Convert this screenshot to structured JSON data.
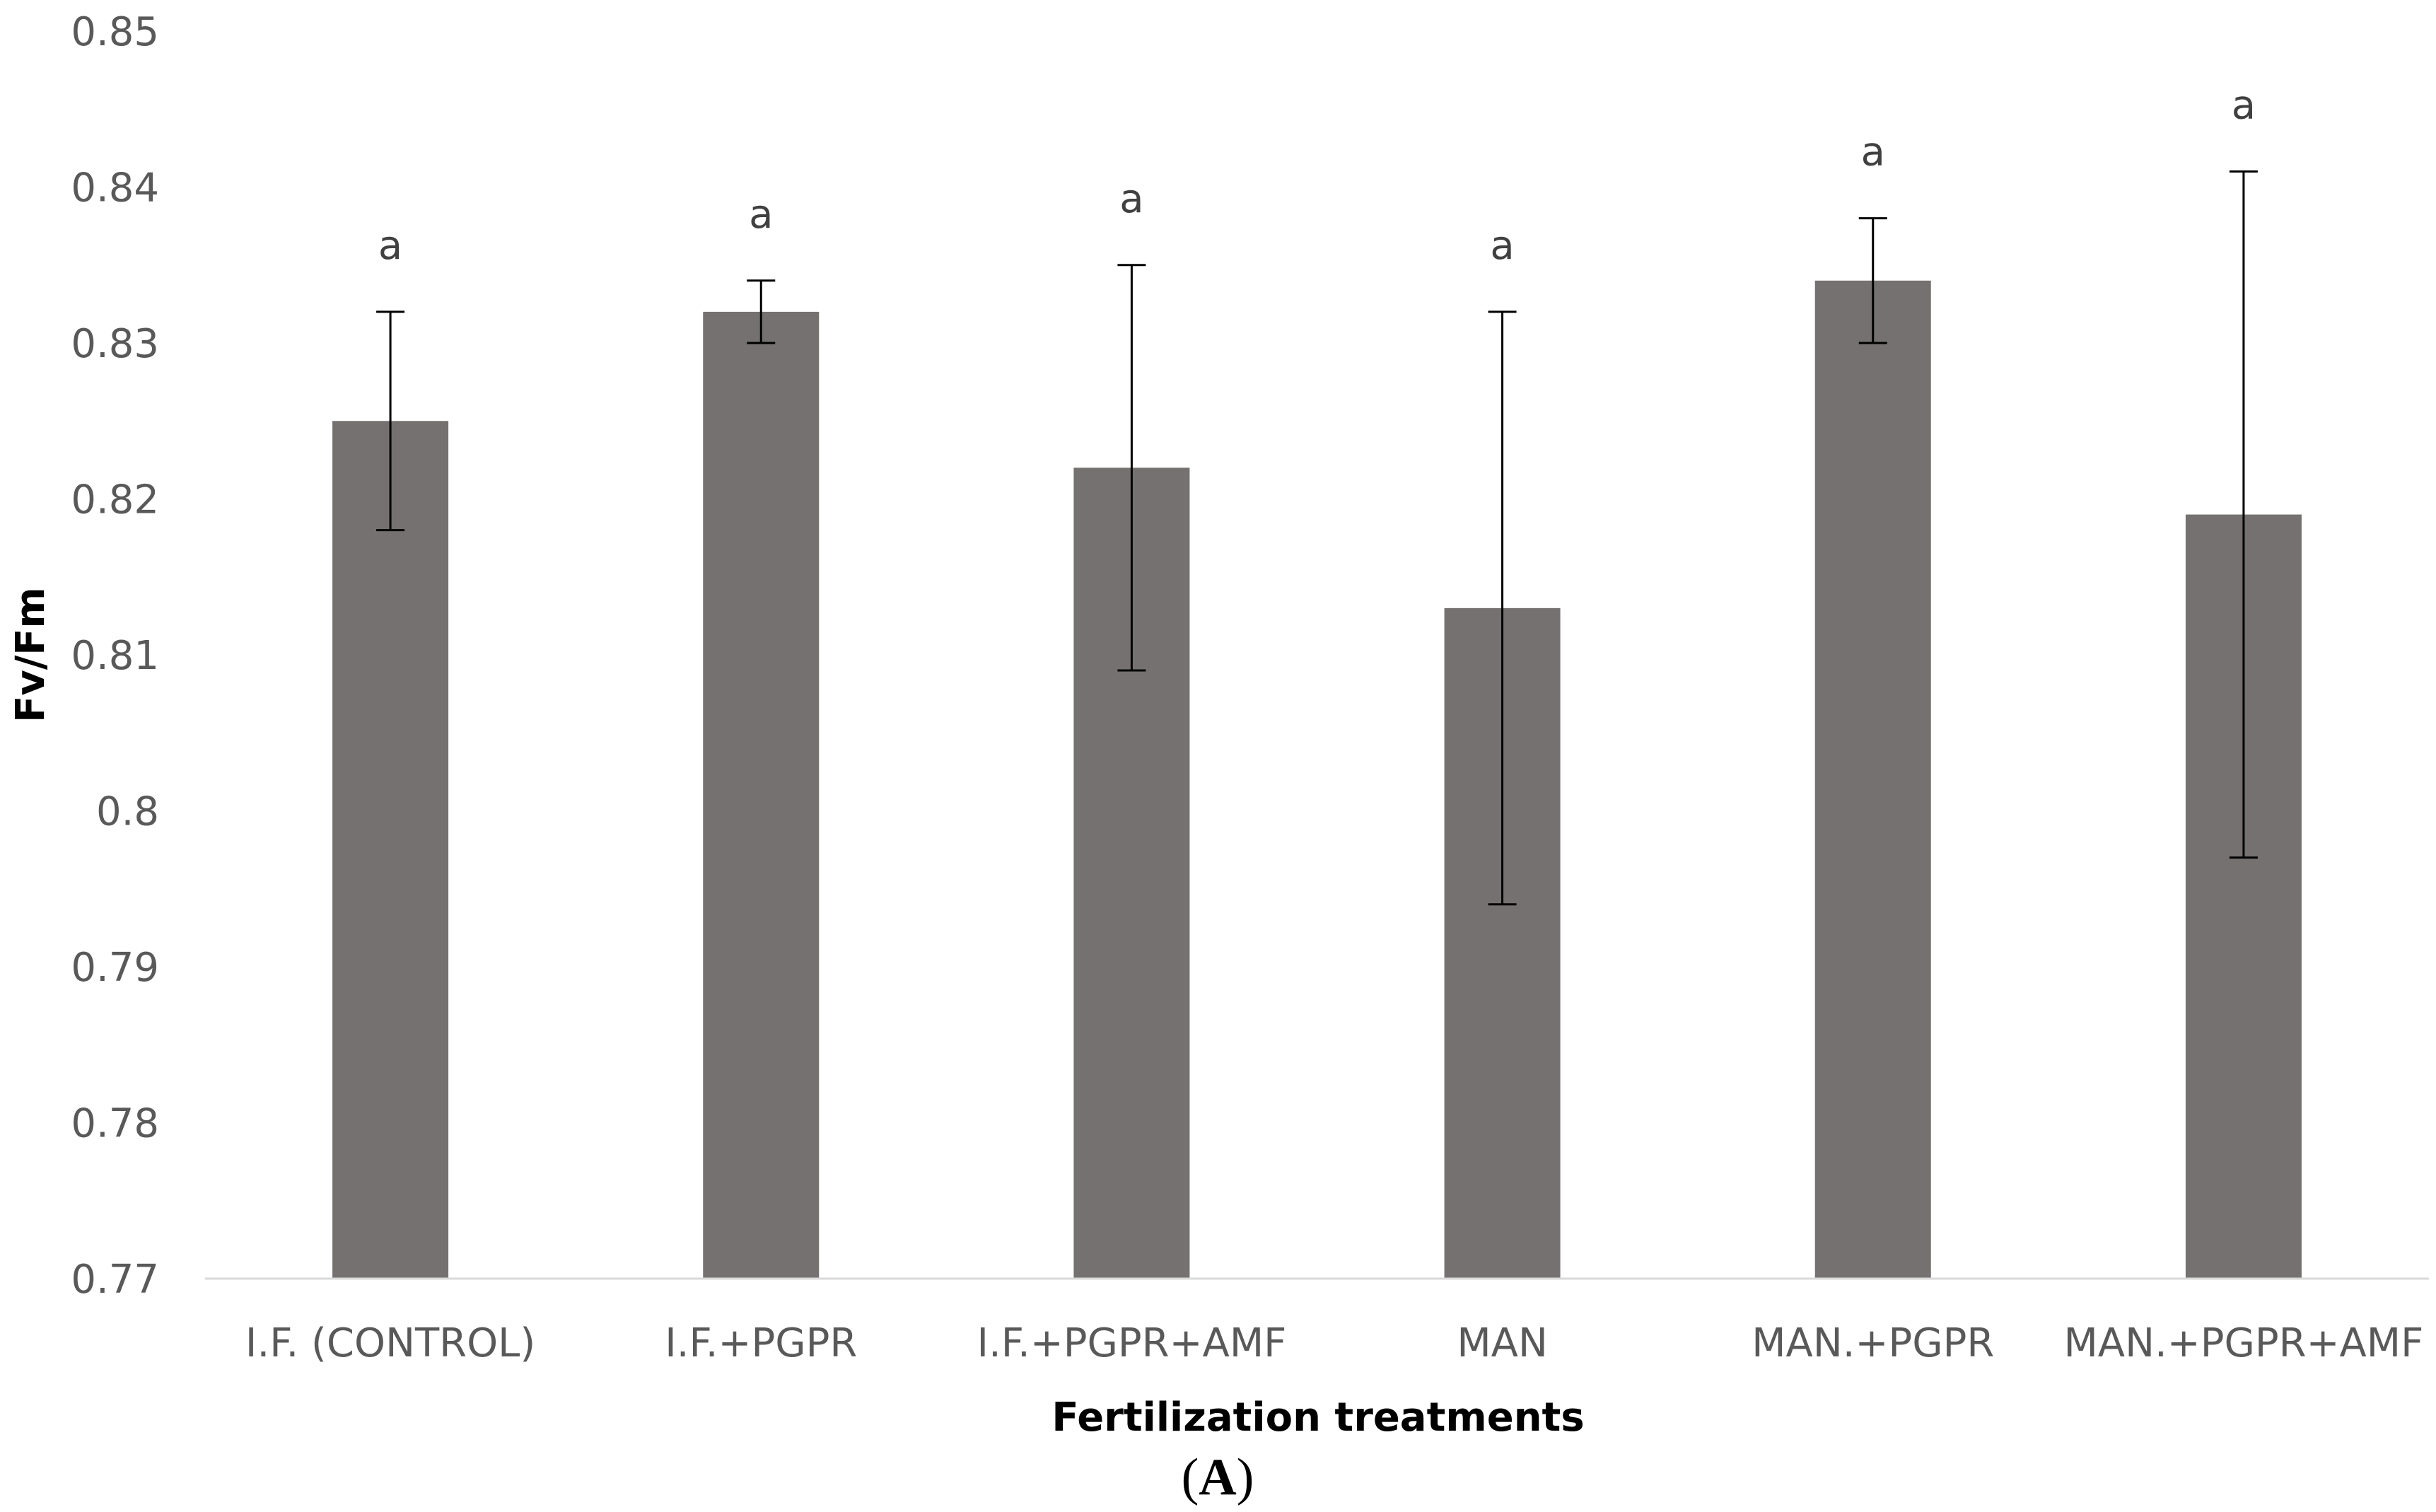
{
  "chart_data": {
    "type": "bar",
    "title": "",
    "xlabel": "Fertilization treatments",
    "ylabel": "Fv/Fm",
    "ylim": [
      0.77,
      0.85
    ],
    "yticks": [
      "0.77",
      "0.78",
      "0.79",
      "0.8",
      "0.81",
      "0.82",
      "0.83",
      "0.84",
      "0.85"
    ],
    "categories": [
      "I.F. (CONTROL)",
      "I.F.+PGPR",
      "I.F.+PGPR+AMF",
      "MAN",
      "MAN.+PGPR",
      "MAN.+PGPR+AMF"
    ],
    "values": [
      0.825,
      0.832,
      0.822,
      0.813,
      0.834,
      0.819
    ],
    "error_low": [
      0.818,
      0.83,
      0.809,
      0.794,
      0.83,
      0.797
    ],
    "error_high": [
      0.832,
      0.834,
      0.835,
      0.832,
      0.838,
      0.841
    ],
    "significance_letters": [
      "a",
      "a",
      "a",
      "a",
      "a",
      "a"
    ],
    "bar_color": "#767171",
    "grid": false,
    "legend": "none",
    "panel_label": {
      "open": "(",
      "letter": "A",
      "close": ")"
    }
  }
}
